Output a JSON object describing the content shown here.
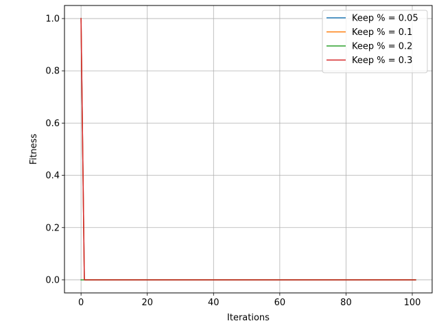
{
  "chart_data": {
    "type": "line",
    "title": "",
    "xlabel": "Iterations",
    "ylabel": "Fitness",
    "xlim": [
      -5,
      106
    ],
    "ylim": [
      -0.05,
      1.05
    ],
    "xticks": [
      0,
      20,
      40,
      60,
      80,
      100
    ],
    "yticks": [
      0.0,
      0.2,
      0.4,
      0.6,
      0.8,
      1.0
    ],
    "xtick_labels": [
      "0",
      "20",
      "40",
      "60",
      "80",
      "100"
    ],
    "ytick_labels": [
      "0.0",
      "0.2",
      "0.4",
      "0.6",
      "0.8",
      "1.0"
    ],
    "grid": true,
    "legend_position": "top-right",
    "series": [
      {
        "name": "Keep % = 0.05",
        "color": "#1f77b4",
        "x": [
          0,
          1,
          101
        ],
        "y": [
          1.0,
          0.0,
          0.0
        ]
      },
      {
        "name": "Keep % = 0.1",
        "color": "#ff7f0e",
        "x": [
          0,
          1,
          101
        ],
        "y": [
          1.0,
          0.0,
          0.0
        ]
      },
      {
        "name": "Keep % = 0.2",
        "color": "#2ca02c",
        "x": [
          0,
          1,
          101
        ],
        "y": [
          0.0,
          0.0,
          0.0
        ]
      },
      {
        "name": "Keep % = 0.3",
        "color": "#d62728",
        "x": [
          0,
          1,
          101
        ],
        "y": [
          1.0,
          0.0,
          0.0
        ]
      }
    ]
  }
}
